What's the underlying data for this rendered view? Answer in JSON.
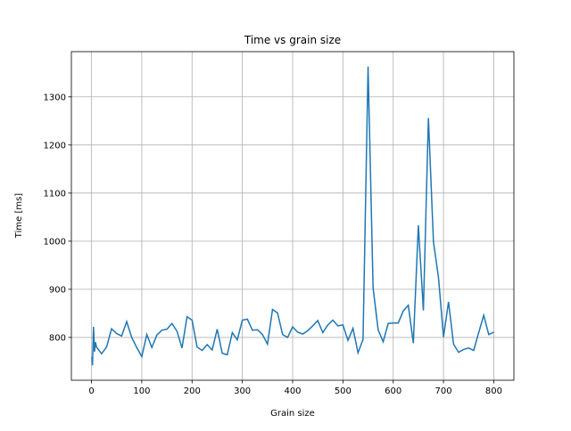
{
  "chart_data": {
    "type": "line",
    "title": "Time vs grain size",
    "xlabel": "Grain size",
    "ylabel": "Time [ms]",
    "x": [
      1,
      2,
      4,
      6,
      8,
      10,
      20,
      30,
      40,
      50,
      60,
      70,
      80,
      90,
      100,
      110,
      120,
      130,
      140,
      150,
      160,
      170,
      180,
      190,
      200,
      210,
      220,
      230,
      240,
      250,
      260,
      270,
      280,
      290,
      300,
      310,
      320,
      330,
      340,
      350,
      360,
      370,
      380,
      390,
      400,
      410,
      420,
      430,
      440,
      450,
      460,
      470,
      480,
      490,
      500,
      510,
      520,
      530,
      540,
      550,
      560,
      570,
      580,
      590,
      600,
      610,
      620,
      630,
      640,
      650,
      660,
      670,
      680,
      690,
      700,
      710,
      720,
      730,
      740,
      750,
      760,
      770,
      780,
      790,
      800
    ],
    "series": [
      {
        "name": "Time",
        "color": "#1f77b4",
        "values": [
          760,
          742,
          822,
          770,
          790,
          780,
          766,
          780,
          818,
          808,
          803,
          833,
          800,
          779,
          760,
          806,
          779,
          805,
          815,
          817,
          829,
          813,
          778,
          843,
          836,
          780,
          773,
          785,
          774,
          817,
          767,
          764,
          810,
          795,
          836,
          838,
          815,
          816,
          806,
          786,
          858,
          851,
          806,
          800,
          822,
          811,
          807,
          814,
          824,
          835,
          810,
          826,
          836,
          824,
          826,
          794,
          819,
          768,
          796,
          1363,
          903,
          816,
          791,
          829,
          830,
          830,
          855,
          867,
          788,
          1033,
          856,
          1256,
          999,
          925,
          801,
          874,
          786,
          769,
          775,
          778,
          773,
          810,
          846,
          806,
          811
        ]
      }
    ],
    "xlim": [
      -40,
      840
    ],
    "ylim": [
      711,
      1394
    ],
    "xticks": [
      0,
      100,
      200,
      300,
      400,
      500,
      600,
      700,
      800
    ],
    "yticks": [
      800,
      900,
      1000,
      1100,
      1200,
      1300
    ],
    "grid": true
  }
}
